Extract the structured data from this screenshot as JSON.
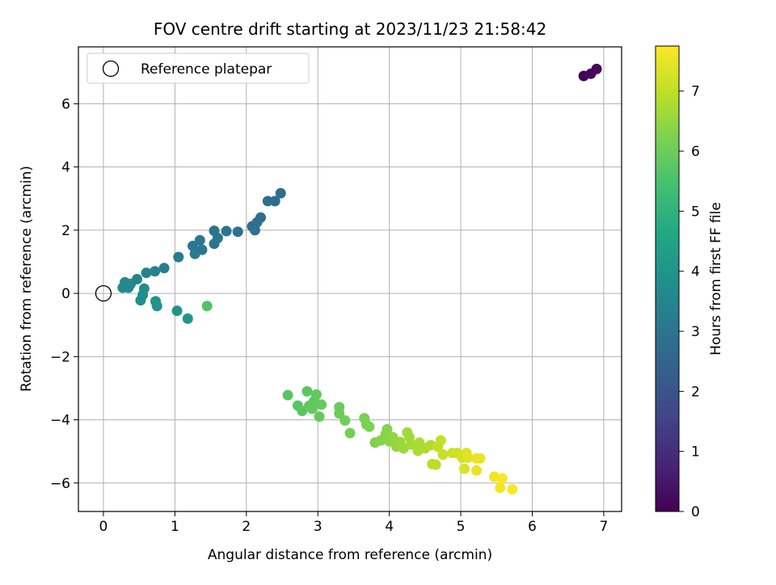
{
  "chart_data": {
    "type": "scatter",
    "title": "FOV centre drift starting at 2023/11/23 21:58:42",
    "xlabel": "Angular distance from reference (arcmin)",
    "ylabel": "Rotation from reference (arcmin)",
    "xlim": [
      -0.35,
      7.25
    ],
    "ylim": [
      -6.9,
      7.8
    ],
    "xticks": [
      0,
      1,
      2,
      3,
      4,
      5,
      6,
      7
    ],
    "yticks": [
      -6,
      -4,
      -2,
      0,
      2,
      4,
      6
    ],
    "grid": true,
    "legend": {
      "placement": "top-left",
      "entries": [
        "Reference platepar"
      ]
    },
    "reference_point": {
      "x": 0,
      "y": 0
    },
    "colorbar": {
      "label": "Hours from first FF file",
      "range": [
        0,
        7.75
      ],
      "ticks": [
        0,
        1,
        2,
        3,
        4,
        5,
        6,
        7
      ],
      "colormap": "viridis"
    },
    "points": [
      {
        "x": 6.72,
        "y": 6.88,
        "h": 0.05
      },
      {
        "x": 6.82,
        "y": 6.95,
        "h": 0.1
      },
      {
        "x": 6.9,
        "y": 7.1,
        "h": 0.15
      },
      {
        "x": 2.48,
        "y": 3.17,
        "h": 2.75
      },
      {
        "x": 2.4,
        "y": 2.92,
        "h": 2.75
      },
      {
        "x": 2.3,
        "y": 2.92,
        "h": 2.8
      },
      {
        "x": 2.2,
        "y": 2.4,
        "h": 2.8
      },
      {
        "x": 2.15,
        "y": 2.25,
        "h": 2.85
      },
      {
        "x": 2.08,
        "y": 2.12,
        "h": 2.85
      },
      {
        "x": 2.12,
        "y": 2.0,
        "h": 2.9
      },
      {
        "x": 1.88,
        "y": 1.95,
        "h": 2.9
      },
      {
        "x": 1.72,
        "y": 1.97,
        "h": 2.95
      },
      {
        "x": 1.55,
        "y": 1.98,
        "h": 2.95
      },
      {
        "x": 1.6,
        "y": 1.75,
        "h": 3.0
      },
      {
        "x": 1.55,
        "y": 1.57,
        "h": 3.0
      },
      {
        "x": 1.35,
        "y": 1.68,
        "h": 3.05
      },
      {
        "x": 1.38,
        "y": 1.38,
        "h": 3.1
      },
      {
        "x": 1.25,
        "y": 1.5,
        "h": 3.1
      },
      {
        "x": 1.28,
        "y": 1.25,
        "h": 3.15
      },
      {
        "x": 1.05,
        "y": 1.15,
        "h": 3.2
      },
      {
        "x": 0.85,
        "y": 0.8,
        "h": 3.3
      },
      {
        "x": 0.72,
        "y": 0.7,
        "h": 3.4
      },
      {
        "x": 0.6,
        "y": 0.65,
        "h": 3.45
      },
      {
        "x": 0.47,
        "y": 0.45,
        "h": 3.5
      },
      {
        "x": 0.38,
        "y": 0.3,
        "h": 3.55
      },
      {
        "x": 0.3,
        "y": 0.35,
        "h": 3.6
      },
      {
        "x": 0.35,
        "y": 0.18,
        "h": 3.65
      },
      {
        "x": 0.27,
        "y": 0.18,
        "h": 3.7
      },
      {
        "x": 0.57,
        "y": 0.15,
        "h": 3.75
      },
      {
        "x": 0.55,
        "y": -0.05,
        "h": 3.8
      },
      {
        "x": 0.52,
        "y": -0.22,
        "h": 3.85
      },
      {
        "x": 0.73,
        "y": -0.25,
        "h": 3.9
      },
      {
        "x": 0.75,
        "y": -0.4,
        "h": 3.95
      },
      {
        "x": 1.03,
        "y": -0.55,
        "h": 4.0
      },
      {
        "x": 1.18,
        "y": -0.8,
        "h": 4.05
      },
      {
        "x": 1.45,
        "y": -0.4,
        "h": 5.6
      },
      {
        "x": 2.58,
        "y": -3.22,
        "h": 5.7
      },
      {
        "x": 2.72,
        "y": -3.55,
        "h": 5.7
      },
      {
        "x": 2.85,
        "y": -3.1,
        "h": 5.75
      },
      {
        "x": 2.78,
        "y": -3.72,
        "h": 5.75
      },
      {
        "x": 2.88,
        "y": -3.55,
        "h": 5.8
      },
      {
        "x": 2.95,
        "y": -3.4,
        "h": 5.8
      },
      {
        "x": 2.98,
        "y": -3.2,
        "h": 5.85
      },
      {
        "x": 2.92,
        "y": -3.65,
        "h": 5.85
      },
      {
        "x": 3.05,
        "y": -3.52,
        "h": 5.9
      },
      {
        "x": 3.02,
        "y": -3.9,
        "h": 5.9
      },
      {
        "x": 3.3,
        "y": -3.6,
        "h": 5.95
      },
      {
        "x": 3.3,
        "y": -3.8,
        "h": 6.0
      },
      {
        "x": 3.38,
        "y": -4.02,
        "h": 6.05
      },
      {
        "x": 3.45,
        "y": -4.42,
        "h": 6.1
      },
      {
        "x": 3.65,
        "y": -3.95,
        "h": 6.15
      },
      {
        "x": 3.68,
        "y": -4.15,
        "h": 6.2
      },
      {
        "x": 3.72,
        "y": -4.22,
        "h": 6.2
      },
      {
        "x": 3.8,
        "y": -4.72,
        "h": 6.25
      },
      {
        "x": 3.88,
        "y": -4.65,
        "h": 6.3
      },
      {
        "x": 3.95,
        "y": -4.45,
        "h": 6.35
      },
      {
        "x": 3.97,
        "y": -4.3,
        "h": 6.35
      },
      {
        "x": 4.0,
        "y": -4.68,
        "h": 6.4
      },
      {
        "x": 4.05,
        "y": -4.55,
        "h": 6.45
      },
      {
        "x": 4.1,
        "y": -4.85,
        "h": 6.5
      },
      {
        "x": 4.15,
        "y": -4.7,
        "h": 6.55
      },
      {
        "x": 4.2,
        "y": -4.9,
        "h": 6.6
      },
      {
        "x": 4.25,
        "y": -4.4,
        "h": 6.65
      },
      {
        "x": 4.28,
        "y": -4.55,
        "h": 6.65
      },
      {
        "x": 4.3,
        "y": -4.78,
        "h": 6.7
      },
      {
        "x": 4.4,
        "y": -4.98,
        "h": 6.75
      },
      {
        "x": 4.42,
        "y": -4.72,
        "h": 6.75
      },
      {
        "x": 4.5,
        "y": -4.9,
        "h": 6.8
      },
      {
        "x": 4.58,
        "y": -4.8,
        "h": 6.85
      },
      {
        "x": 4.6,
        "y": -5.4,
        "h": 6.9
      },
      {
        "x": 4.65,
        "y": -5.42,
        "h": 6.95
      },
      {
        "x": 4.68,
        "y": -4.85,
        "h": 7.0
      },
      {
        "x": 4.72,
        "y": -4.65,
        "h": 7.05
      },
      {
        "x": 4.75,
        "y": -5.1,
        "h": 7.1
      },
      {
        "x": 4.88,
        "y": -5.05,
        "h": 7.15
      },
      {
        "x": 4.95,
        "y": -5.05,
        "h": 7.2
      },
      {
        "x": 5.02,
        "y": -5.2,
        "h": 7.25
      },
      {
        "x": 5.05,
        "y": -5.55,
        "h": 7.3
      },
      {
        "x": 5.08,
        "y": -5.05,
        "h": 7.35
      },
      {
        "x": 5.1,
        "y": -5.2,
        "h": 7.4
      },
      {
        "x": 5.22,
        "y": -5.22,
        "h": 7.45
      },
      {
        "x": 5.22,
        "y": -5.6,
        "h": 7.5
      },
      {
        "x": 5.27,
        "y": -5.22,
        "h": 7.55
      },
      {
        "x": 5.47,
        "y": -5.8,
        "h": 7.6
      },
      {
        "x": 5.55,
        "y": -6.15,
        "h": 7.65
      },
      {
        "x": 5.58,
        "y": -5.85,
        "h": 7.7
      },
      {
        "x": 5.72,
        "y": -6.2,
        "h": 7.75
      }
    ]
  }
}
